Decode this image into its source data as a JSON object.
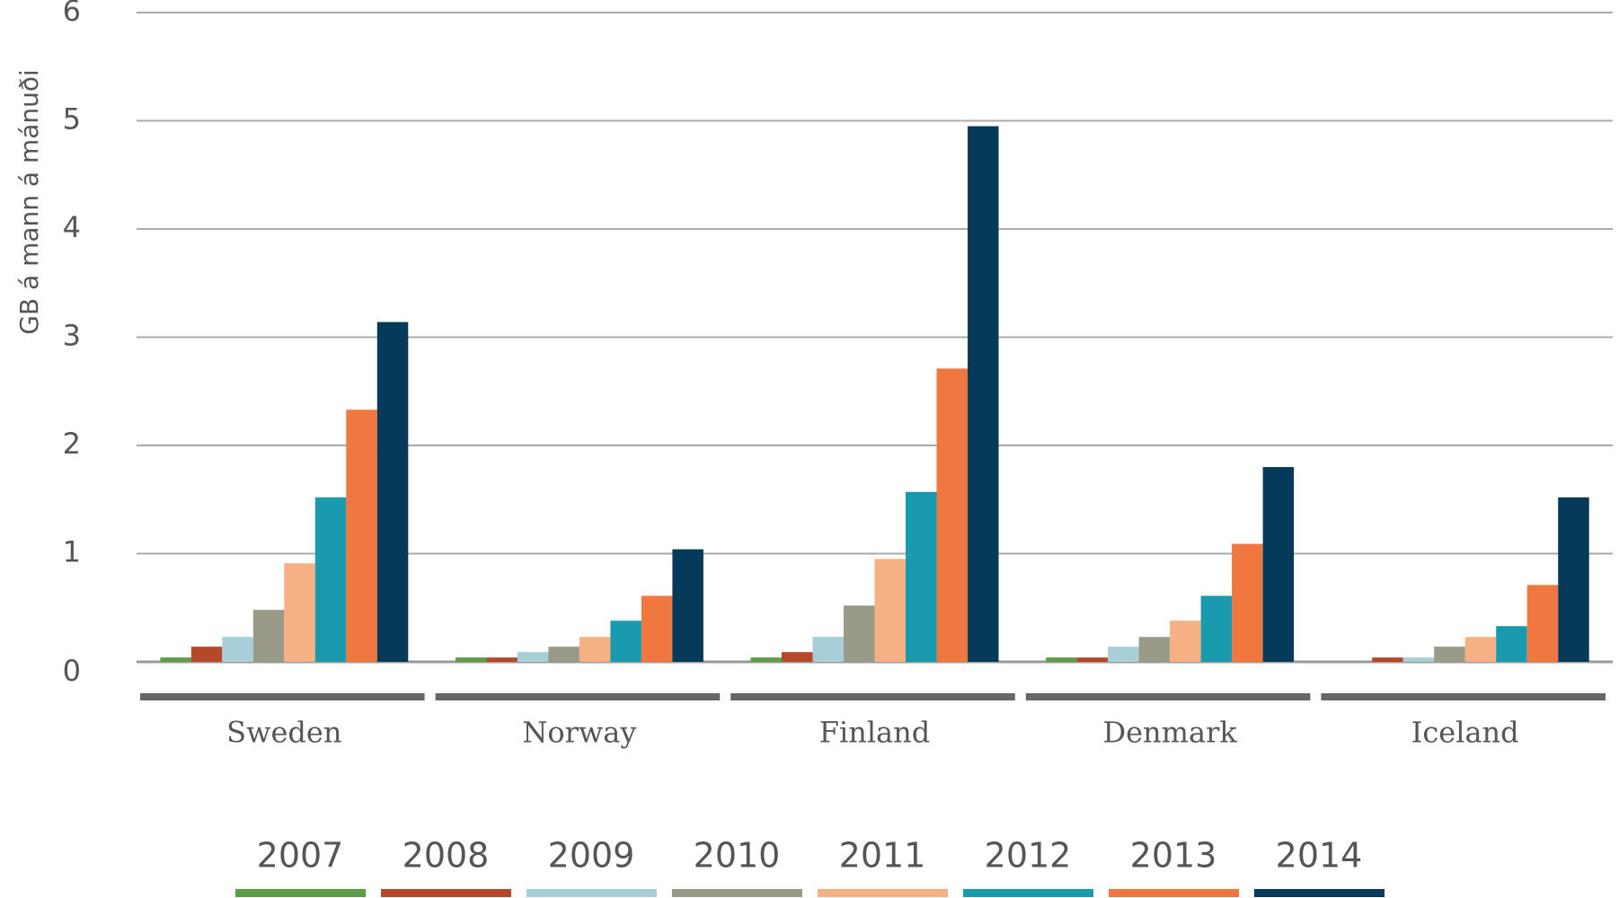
{
  "chart_data": {
    "type": "bar",
    "y_label": "GB á mann á mánuði",
    "categories": [
      "Sweden",
      "Norway",
      "Finland",
      "Denmark",
      "Iceland"
    ],
    "series": [
      {
        "name": "2007",
        "color": "#5c9e48",
        "values": [
          0.04,
          0.04,
          0.04,
          0.04,
          0
        ]
      },
      {
        "name": "2008",
        "color": "#b5482a",
        "values": [
          0.14,
          0.04,
          0.09,
          0.04,
          0.04
        ]
      },
      {
        "name": "2009",
        "color": "#a8cfd8",
        "values": [
          0.23,
          0.09,
          0.23,
          0.14,
          0.04
        ]
      },
      {
        "name": "2010",
        "color": "#9a9a88",
        "values": [
          0.48,
          0.14,
          0.52,
          0.23,
          0.14
        ]
      },
      {
        "name": "2011",
        "color": "#f6b083",
        "values": [
          0.91,
          0.23,
          0.95,
          0.38,
          0.23
        ]
      },
      {
        "name": "2012",
        "color": "#1a9aae",
        "values": [
          1.52,
          0.38,
          1.57,
          0.61,
          0.33
        ]
      },
      {
        "name": "2013",
        "color": "#f07840",
        "values": [
          2.33,
          0.61,
          2.71,
          1.09,
          0.71
        ]
      },
      {
        "name": "2014",
        "color": "#053a5a",
        "values": [
          3.14,
          1.04,
          4.95,
          1.8,
          1.52
        ]
      }
    ],
    "ylim": [
      0,
      6
    ],
    "yticks": [
      0,
      1,
      2,
      3,
      4,
      5,
      6
    ],
    "grid": true,
    "legend": "bottom"
  }
}
